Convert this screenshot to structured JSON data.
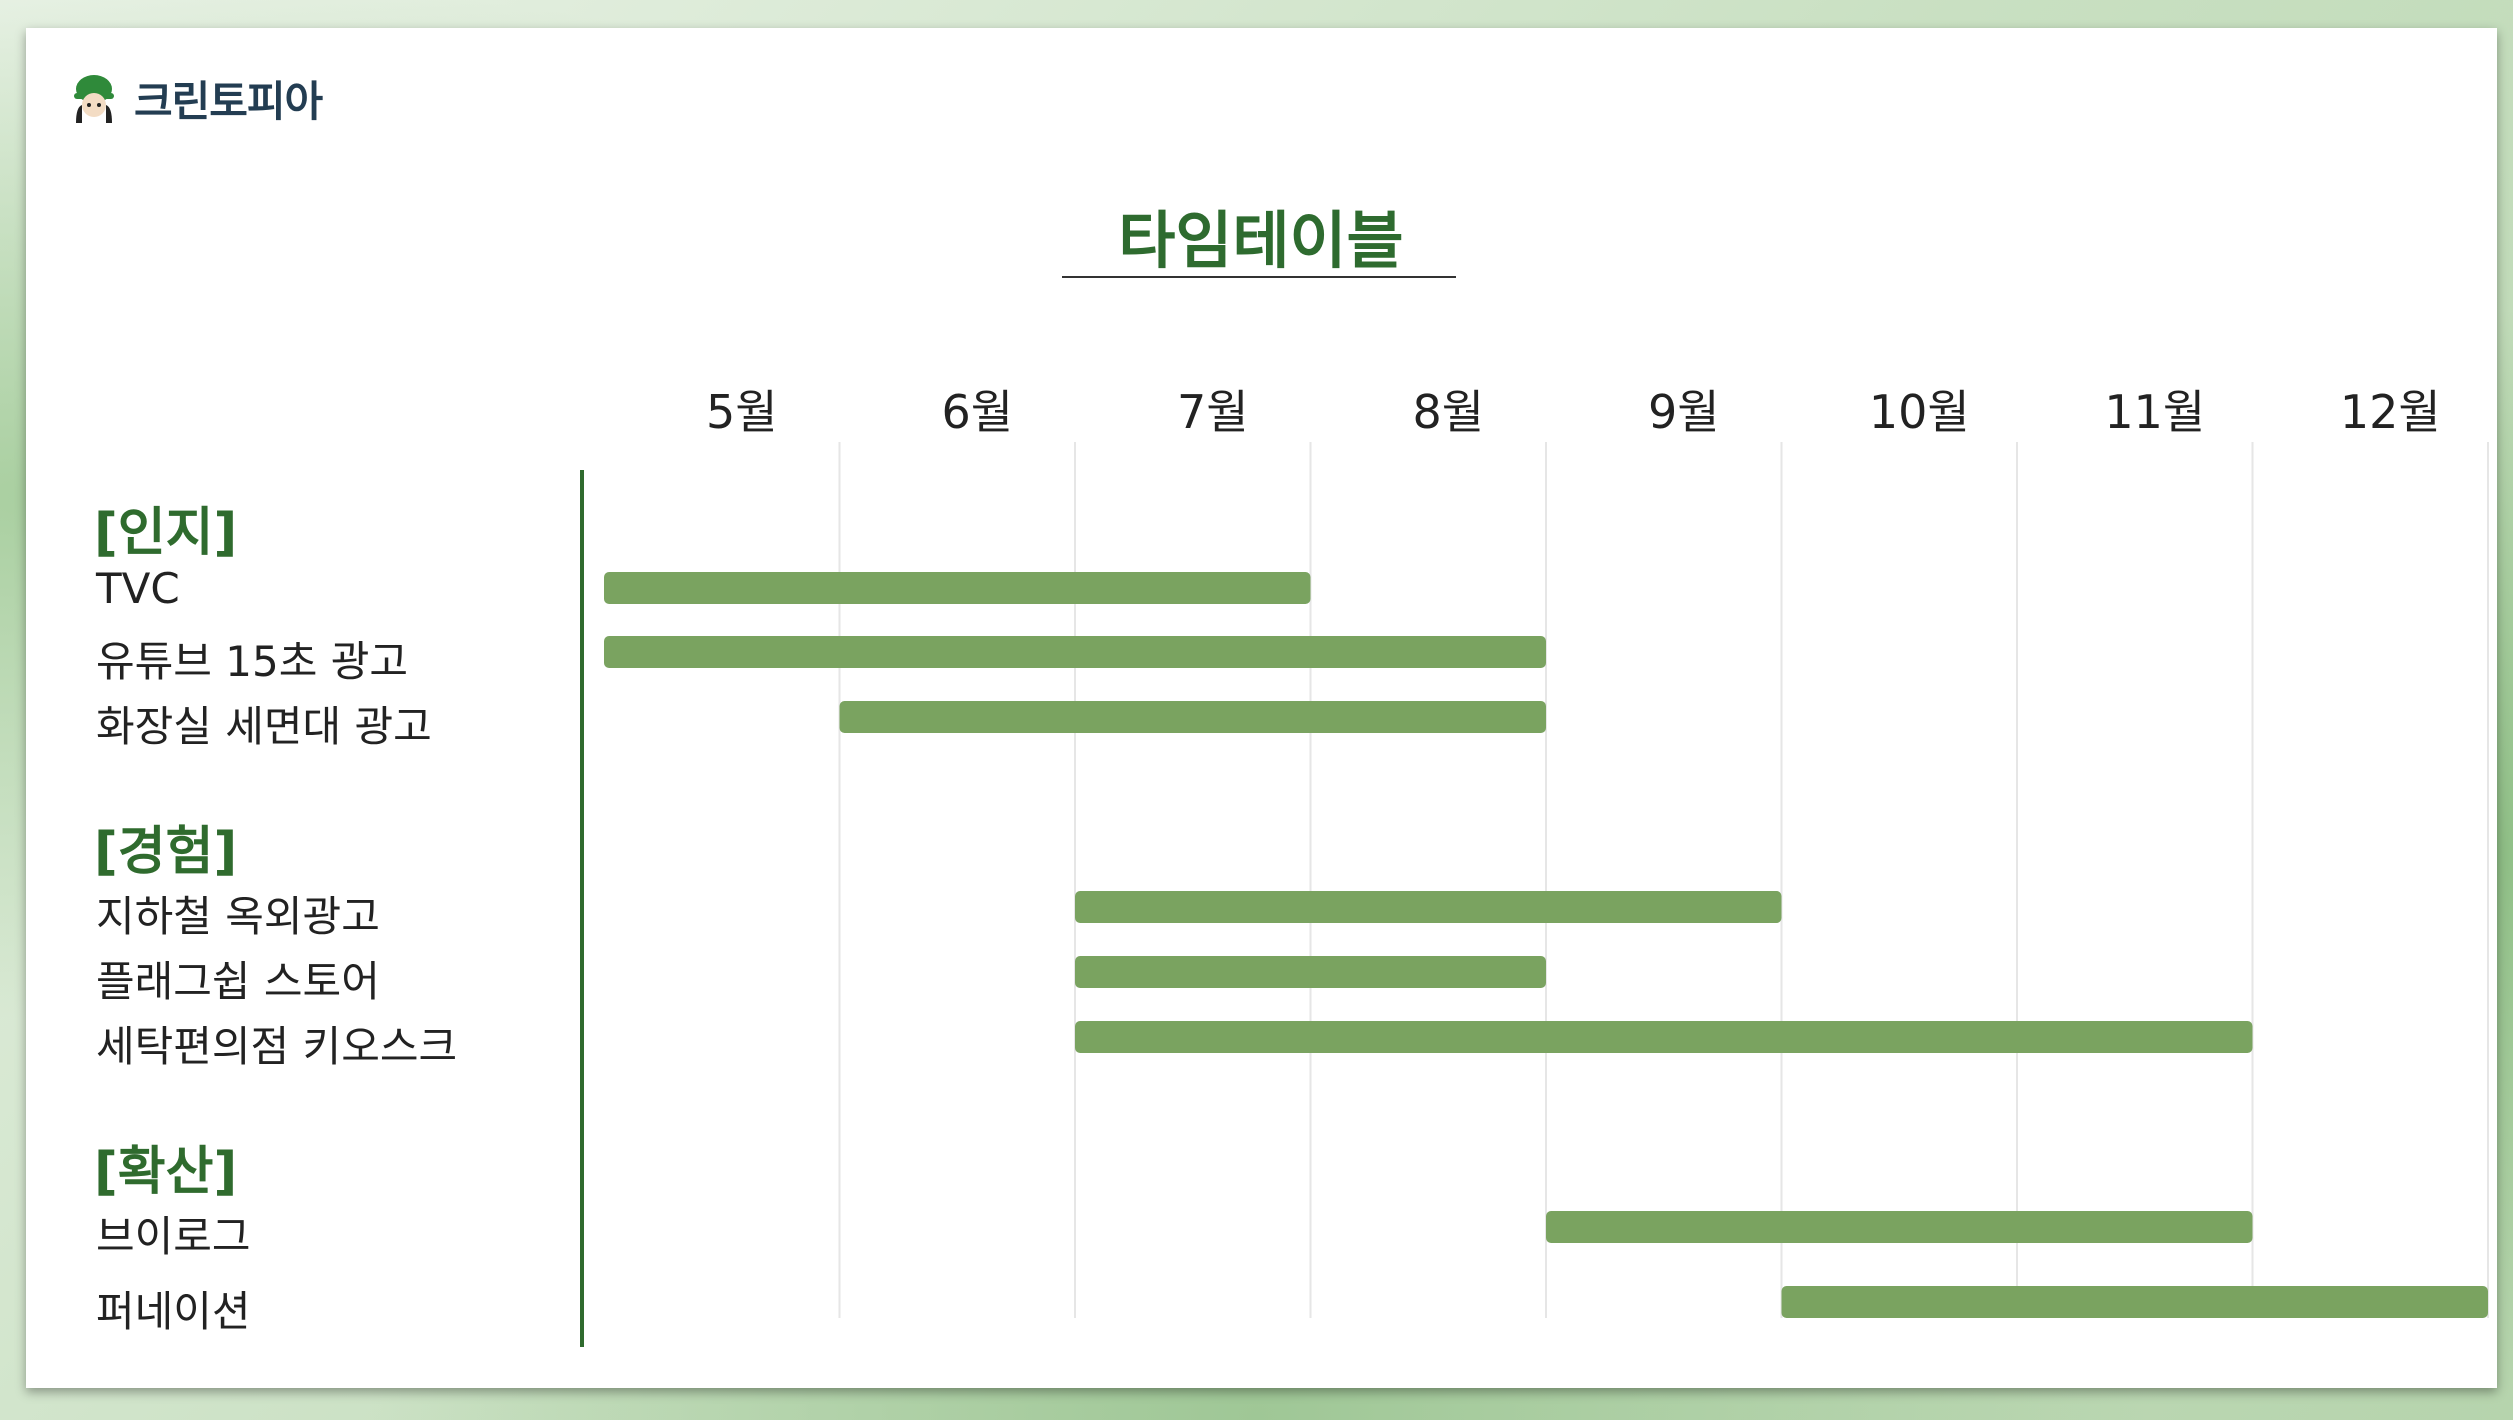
{
  "logo": {
    "text": "크린토피아"
  },
  "title": "타임테이블",
  "chart_data": {
    "type": "gantt",
    "months": [
      "5월",
      "6월",
      "7월",
      "8월",
      "9월",
      "10월",
      "11월",
      "12월"
    ],
    "groups": [
      {
        "label": "[인지]",
        "tasks": [
          {
            "name": "TVC",
            "start": 0,
            "end": 3
          },
          {
            "name": "유튜브 15초 광고",
            "start": 0,
            "end": 4
          },
          {
            "name": "화장실 세면대 광고",
            "start": 1,
            "end": 4
          }
        ]
      },
      {
        "label": "[경험]",
        "tasks": [
          {
            "name": "지하철 옥외광고",
            "start": 2,
            "end": 5
          },
          {
            "name": "플래그쉽 스토어",
            "start": 2,
            "end": 4
          },
          {
            "name": "세탁편의점 키오스크",
            "start": 2,
            "end": 7
          }
        ]
      },
      {
        "label": "[확산]",
        "tasks": [
          {
            "name": "브이로그",
            "start": 4,
            "end": 7
          },
          {
            "name": "퍼네이션",
            "start": 5,
            "end": 8
          }
        ]
      }
    ],
    "colors": {
      "bar": "#7aa360",
      "category": "#2f6b2e",
      "gridline": "#e6e6e6"
    }
  }
}
